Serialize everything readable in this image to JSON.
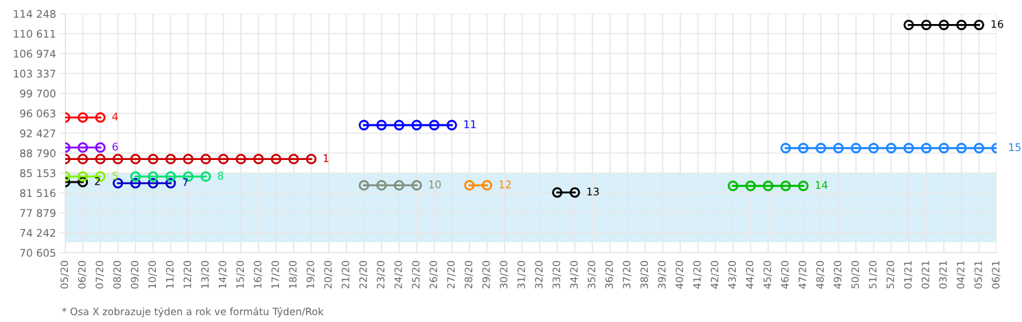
{
  "chart_data": {
    "type": "line",
    "categories": [
      "05/20",
      "06/20",
      "07/20",
      "08/20",
      "09/20",
      "10/20",
      "11/20",
      "12/20",
      "13/20",
      "14/20",
      "15/20",
      "16/20",
      "17/20",
      "18/20",
      "19/20",
      "20/20",
      "21/20",
      "22/20",
      "23/20",
      "24/20",
      "25/20",
      "26/20",
      "27/20",
      "28/20",
      "29/20",
      "30/20",
      "31/20",
      "32/20",
      "33/20",
      "34/20",
      "35/20",
      "36/20",
      "37/20",
      "38/20",
      "39/20",
      "40/20",
      "41/20",
      "42/20",
      "43/20",
      "44/20",
      "45/20",
      "46/20",
      "47/20",
      "48/20",
      "49/20",
      "50/20",
      "51/20",
      "52/20",
      "01/21",
      "02/21",
      "03/21",
      "04/21",
      "05/21",
      "06/21"
    ],
    "series": [
      {
        "name": "1",
        "color": "#cc0000",
        "values": [
          87700,
          87700,
          87700,
          87700,
          87700,
          87700,
          87700,
          87700,
          87700,
          87700,
          87700,
          87700,
          87700,
          87700,
          87700,
          null,
          null,
          null,
          null,
          null,
          null,
          null,
          null,
          null,
          null,
          null,
          null,
          null,
          null,
          null,
          null,
          null,
          null,
          null,
          null,
          null,
          null,
          null,
          null,
          null,
          null,
          null,
          null,
          null,
          null,
          null,
          null,
          null,
          null,
          null,
          null,
          null,
          null,
          null
        ]
      },
      {
        "name": "2",
        "color": "#000000",
        "values": [
          83500,
          83500,
          null,
          null,
          null,
          null,
          null,
          null,
          null,
          null,
          null,
          null,
          null,
          null,
          null,
          null,
          null,
          null,
          null,
          null,
          null,
          null,
          null,
          null,
          null,
          null,
          null,
          null,
          null,
          null,
          null,
          null,
          null,
          null,
          null,
          null,
          null,
          null,
          null,
          null,
          null,
          null,
          null,
          null,
          null,
          null,
          null,
          null,
          null,
          null,
          null,
          null,
          null,
          null
        ]
      },
      {
        "name": "4",
        "color": "#ff0000",
        "values": [
          95300,
          95300,
          95300,
          null,
          null,
          null,
          null,
          null,
          null,
          null,
          null,
          null,
          null,
          null,
          null,
          null,
          null,
          null,
          null,
          null,
          null,
          null,
          null,
          null,
          null,
          null,
          null,
          null,
          null,
          null,
          null,
          null,
          null,
          null,
          null,
          null,
          null,
          null,
          null,
          null,
          null,
          null,
          null,
          null,
          null,
          null,
          null,
          null,
          null,
          null,
          null,
          null,
          null,
          null
        ]
      },
      {
        "name": "5",
        "color": "#88ee00",
        "values": [
          84500,
          84500,
          84500,
          null,
          null,
          null,
          null,
          null,
          null,
          null,
          null,
          null,
          null,
          null,
          null,
          null,
          null,
          null,
          null,
          null,
          null,
          null,
          null,
          null,
          null,
          null,
          null,
          null,
          null,
          null,
          null,
          null,
          null,
          null,
          null,
          null,
          null,
          null,
          null,
          null,
          null,
          null,
          null,
          null,
          null,
          null,
          null,
          null,
          null,
          null,
          null,
          null,
          null,
          null
        ]
      },
      {
        "name": "6",
        "color": "#8800ff",
        "values": [
          89800,
          89800,
          89800,
          null,
          null,
          null,
          null,
          null,
          null,
          null,
          null,
          null,
          null,
          null,
          null,
          null,
          null,
          null,
          null,
          null,
          null,
          null,
          null,
          null,
          null,
          null,
          null,
          null,
          null,
          null,
          null,
          null,
          null,
          null,
          null,
          null,
          null,
          null,
          null,
          null,
          null,
          null,
          null,
          null,
          null,
          null,
          null,
          null,
          null,
          null,
          null,
          null,
          null,
          null
        ]
      },
      {
        "name": "7",
        "color": "#0000cc",
        "values": [
          null,
          null,
          null,
          83300,
          83300,
          83300,
          83300,
          null,
          null,
          null,
          null,
          null,
          null,
          null,
          null,
          null,
          null,
          null,
          null,
          null,
          null,
          null,
          null,
          null,
          null,
          null,
          null,
          null,
          null,
          null,
          null,
          null,
          null,
          null,
          null,
          null,
          null,
          null,
          null,
          null,
          null,
          null,
          null,
          null,
          null,
          null,
          null,
          null,
          null,
          null,
          null,
          null,
          null,
          null
        ]
      },
      {
        "name": "8",
        "color": "#00e070",
        "values": [
          null,
          null,
          null,
          null,
          84500,
          84500,
          84500,
          84500,
          84500,
          null,
          null,
          null,
          null,
          null,
          null,
          null,
          null,
          null,
          null,
          null,
          null,
          null,
          null,
          null,
          null,
          null,
          null,
          null,
          null,
          null,
          null,
          null,
          null,
          null,
          null,
          null,
          null,
          null,
          null,
          null,
          null,
          null,
          null,
          null,
          null,
          null,
          null,
          null,
          null,
          null,
          null,
          null,
          null,
          null
        ]
      },
      {
        "name": "10",
        "color": "#7f8f7f",
        "values": [
          null,
          null,
          null,
          null,
          null,
          null,
          null,
          null,
          null,
          null,
          null,
          null,
          null,
          null,
          null,
          null,
          null,
          82900,
          82900,
          82900,
          82900,
          null,
          null,
          null,
          null,
          null,
          null,
          null,
          null,
          null,
          null,
          null,
          null,
          null,
          null,
          null,
          null,
          null,
          null,
          null,
          null,
          null,
          null,
          null,
          null,
          null,
          null,
          null,
          null,
          null,
          null,
          null,
          null,
          null
        ]
      },
      {
        "name": "11",
        "color": "#0000ff",
        "values": [
          null,
          null,
          null,
          null,
          null,
          null,
          null,
          null,
          null,
          null,
          null,
          null,
          null,
          null,
          null,
          null,
          null,
          93900,
          93900,
          93900,
          93900,
          93900,
          93900,
          null,
          null,
          null,
          null,
          null,
          null,
          null,
          null,
          null,
          null,
          null,
          null,
          null,
          null,
          null,
          null,
          null,
          null,
          null,
          null,
          null,
          null,
          null,
          null,
          null,
          null,
          null,
          null,
          null,
          null,
          null
        ]
      },
      {
        "name": "12",
        "color": "#ff8800",
        "values": [
          null,
          null,
          null,
          null,
          null,
          null,
          null,
          null,
          null,
          null,
          null,
          null,
          null,
          null,
          null,
          null,
          null,
          null,
          null,
          null,
          null,
          null,
          null,
          82900,
          82900,
          null,
          null,
          null,
          null,
          null,
          null,
          null,
          null,
          null,
          null,
          null,
          null,
          null,
          null,
          null,
          null,
          null,
          null,
          null,
          null,
          null,
          null,
          null,
          null,
          null,
          null,
          null,
          null,
          null
        ]
      },
      {
        "name": "13",
        "color": "#000000",
        "values": [
          null,
          null,
          null,
          null,
          null,
          null,
          null,
          null,
          null,
          null,
          null,
          null,
          null,
          null,
          null,
          null,
          null,
          null,
          null,
          null,
          null,
          null,
          null,
          null,
          null,
          null,
          null,
          null,
          81600,
          81600,
          null,
          null,
          null,
          null,
          null,
          null,
          null,
          null,
          null,
          null,
          null,
          null,
          null,
          null,
          null,
          null,
          null,
          null,
          null,
          null,
          null,
          null,
          null,
          null
        ]
      },
      {
        "name": "14",
        "color": "#00bb00",
        "values": [
          null,
          null,
          null,
          null,
          null,
          null,
          null,
          null,
          null,
          null,
          null,
          null,
          null,
          null,
          null,
          null,
          null,
          null,
          null,
          null,
          null,
          null,
          null,
          null,
          null,
          null,
          null,
          null,
          null,
          null,
          null,
          null,
          null,
          null,
          null,
          null,
          null,
          null,
          82800,
          82800,
          82800,
          82800,
          82800,
          null,
          null,
          null,
          null,
          null,
          null,
          null,
          null,
          null,
          null,
          null
        ]
      },
      {
        "name": "15",
        "color": "#1e88ff",
        "values": [
          null,
          null,
          null,
          null,
          null,
          null,
          null,
          null,
          null,
          null,
          null,
          null,
          null,
          null,
          null,
          null,
          null,
          null,
          null,
          null,
          null,
          null,
          null,
          null,
          null,
          null,
          null,
          null,
          null,
          null,
          null,
          null,
          null,
          null,
          null,
          null,
          null,
          null,
          null,
          null,
          null,
          89700,
          89700,
          89700,
          89700,
          89700,
          89700,
          89700,
          89700,
          89700,
          89700,
          89700,
          89700,
          89700
        ]
      },
      {
        "name": "16",
        "color": "#000000",
        "values": [
          null,
          null,
          null,
          null,
          null,
          null,
          null,
          null,
          null,
          null,
          null,
          null,
          null,
          null,
          null,
          null,
          null,
          null,
          null,
          null,
          null,
          null,
          null,
          null,
          null,
          null,
          null,
          null,
          null,
          null,
          null,
          null,
          null,
          null,
          null,
          null,
          null,
          null,
          null,
          null,
          null,
          null,
          null,
          null,
          null,
          null,
          null,
          null,
          112200,
          112200,
          112200,
          112200,
          112200,
          null
        ]
      }
    ],
    "ylim": [
      70605,
      114248
    ],
    "yticks": [
      {
        "value": 70605,
        "label": "70 605"
      },
      {
        "value": 74242,
        "label": "74 242"
      },
      {
        "value": 77879,
        "label": "77 879"
      },
      {
        "value": 81516,
        "label": "81 516"
      },
      {
        "value": 85153,
        "label": "85 153"
      },
      {
        "value": 88790,
        "label": "88 790"
      },
      {
        "value": 92427,
        "label": "92 427"
      },
      {
        "value": 96063,
        "label": "96 063"
      },
      {
        "value": 99700,
        "label": "99 700"
      },
      {
        "value": 103337,
        "label": "103 337"
      },
      {
        "value": 106974,
        "label": "106 974"
      },
      {
        "value": 110611,
        "label": "110 611"
      },
      {
        "value": 114248,
        "label": "114 248"
      }
    ],
    "bands": [
      {
        "axis": "y",
        "from": 72490,
        "to": 85153,
        "color": "#d9f0fa"
      }
    ],
    "grid": true,
    "marker": "circle",
    "line_style": "solid",
    "annotations": [
      "* Osa X zobrazuje týden a rok ve formátu Týden/Rok"
    ]
  }
}
